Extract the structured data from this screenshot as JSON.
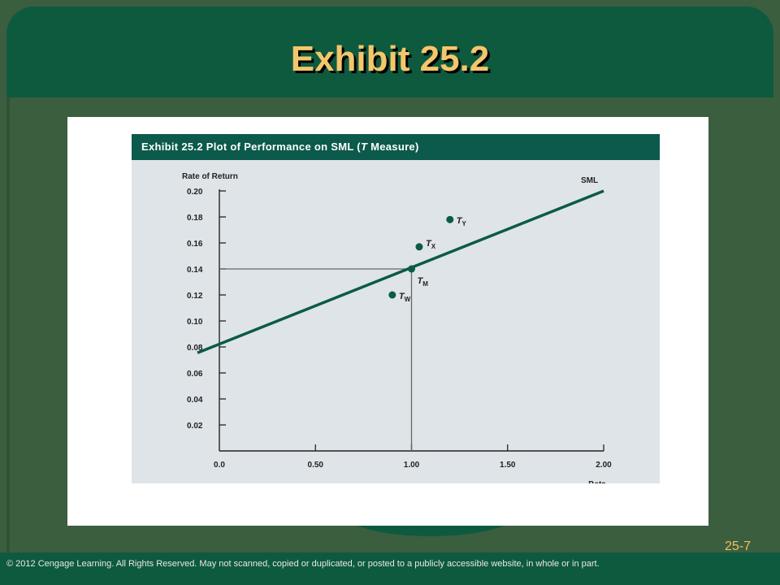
{
  "slide": {
    "title": "Exhibit 25.2",
    "page_number": "25-7",
    "footer": "© 2012 Cengage Learning.  All Rights Reserved. May not scanned, copied or duplicated, or posted to a publicly accessible website, in whole or in part."
  },
  "chart_data": {
    "type": "line",
    "title": "Exhibit 25.2 Plot of Performance on SML (T Measure)",
    "xlabel": "Beta",
    "ylabel": "Rate of Return",
    "xlim": [
      0,
      2.0
    ],
    "ylim": [
      0,
      0.2
    ],
    "x_ticks": [
      "0.0",
      "0.50",
      "1.00",
      "1.50",
      "2.00"
    ],
    "y_ticks": [
      "0.20",
      "0.18",
      "0.16",
      "0.14",
      "0.12",
      "0.10",
      "0.08",
      "0.06",
      "0.04",
      "0.02"
    ],
    "series": [
      {
        "name": "SML",
        "points": [
          [
            0.0,
            0.08
          ],
          [
            2.0,
            0.2
          ]
        ]
      }
    ],
    "portfolios": [
      {
        "label": "T",
        "subscript": "Y",
        "x": 1.2,
        "y": 0.178
      },
      {
        "label": "T",
        "subscript": "X",
        "x": 1.04,
        "y": 0.157
      },
      {
        "label": "T",
        "subscript": "M",
        "x": 1.0,
        "y": 0.14
      },
      {
        "label": "T",
        "subscript": "W",
        "x": 0.9,
        "y": 0.12
      }
    ],
    "reference_point": {
      "x": 1.0,
      "y": 0.14
    },
    "colors": {
      "sml": "#0b5a4a",
      "points": "#0b5a4a",
      "header_bg": "#0c5a4b",
      "plot_bg": "#dfe4e8"
    },
    "grid": false
  }
}
